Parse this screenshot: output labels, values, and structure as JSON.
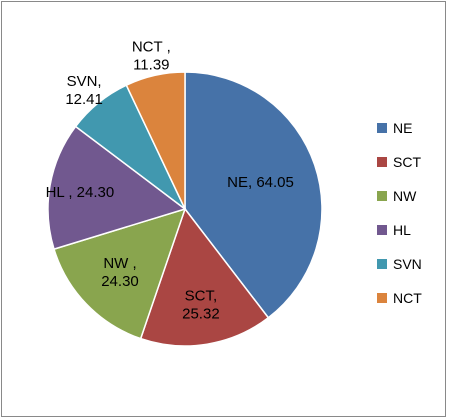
{
  "chart_data": {
    "type": "pie",
    "categories": [
      "NE",
      "SCT",
      "NW",
      "HL",
      "SVN",
      "NCT"
    ],
    "values": [
      64.05,
      25.32,
      24.3,
      24.3,
      12.41,
      11.39
    ],
    "data_labels": [
      [
        "NE, 64.05"
      ],
      [
        "SCT,",
        "25.32"
      ],
      [
        "NW ,",
        "24.30"
      ],
      [
        "HL , 24.30"
      ],
      [
        "SVN,",
        "12.41"
      ],
      [
        "NCT ,",
        "11.39"
      ]
    ],
    "colors": [
      "#4672A8",
      "#AA4643",
      "#89A54E",
      "#71588F",
      "#4198AF",
      "#DB843D"
    ],
    "legend": {
      "position": "right",
      "entries": [
        "NE",
        "SCT",
        "NW",
        "HL",
        "SVN",
        "NCT"
      ]
    },
    "start_angle_deg": 0,
    "direction": "clockwise"
  }
}
